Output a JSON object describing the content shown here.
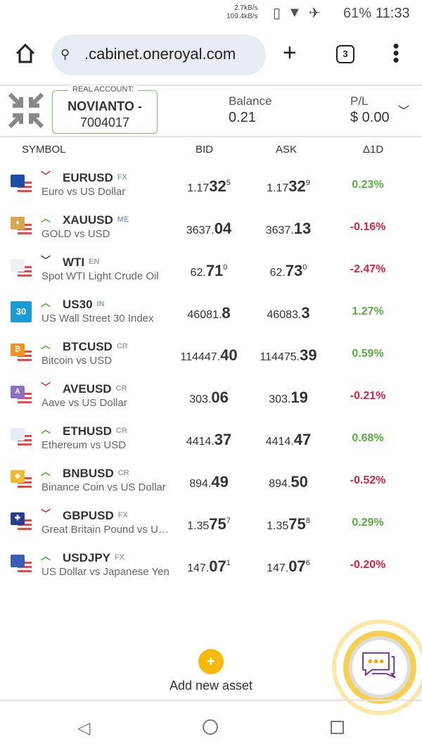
{
  "status": {
    "up": "2.7kB/s",
    "down": "109.4kB/s",
    "battery": "61%",
    "time": "11:33"
  },
  "browser": {
    "url": ".cabinet.oneroyal.com",
    "tab_count": "3"
  },
  "account": {
    "label": "REAL ACCOUNT:",
    "name": "NOVIANTO -",
    "number": "7004017",
    "balance_label": "Balance",
    "balance": "0.21",
    "pl_label": "P/L",
    "pl": "$ 0.00"
  },
  "table": {
    "headers": {
      "symbol": "SYMBOL",
      "bid": "BID",
      "ask": "ASK",
      "change": "Δ1D"
    }
  },
  "colors": {
    "up": "#5aac44",
    "down": "#d6244a",
    "accent": "#f8b90b"
  },
  "rows": [
    {
      "symbol": "EURUSD",
      "cat": "FX",
      "desc": "Euro vs US Dollar",
      "dir": "down",
      "icon": "eu-flag-icon",
      "iconColor": "#1d4ea8",
      "iconText": "",
      "bid": [
        "1.17",
        "32",
        "5"
      ],
      "ask": [
        "1.17",
        "32",
        "9"
      ],
      "change": "0.23%",
      "changeDir": "up"
    },
    {
      "symbol": "XAUUSD",
      "cat": "ME",
      "desc": "GOLD vs USD",
      "dir": "up",
      "icon": "gold-icon",
      "iconColor": "#d9a54e",
      "iconText": "♦",
      "bid": [
        "3637.",
        "04",
        ""
      ],
      "ask": [
        "3637.",
        "13",
        ""
      ],
      "change": "-0.16%",
      "changeDir": "down"
    },
    {
      "symbol": "WTI",
      "cat": "EN",
      "desc": "Spot WTI Light Crude Oil",
      "dir": "neutral",
      "icon": "oil-icon",
      "iconColor": "#eef1f4",
      "iconText": "",
      "bid": [
        "62.",
        "71",
        "0"
      ],
      "ask": [
        "62.",
        "73",
        "0"
      ],
      "change": "-2.47%",
      "changeDir": "down"
    },
    {
      "symbol": "US30",
      "cat": "IN",
      "desc": "US Wall Street 30 Index",
      "dir": "up",
      "icon": "index-30-icon",
      "iconColor": "#1a9ad6",
      "iconText": "30",
      "bid": [
        "46081.",
        "8",
        ""
      ],
      "ask": [
        "46083.",
        "3",
        ""
      ],
      "change": "1.27%",
      "changeDir": "up"
    },
    {
      "symbol": "BTCUSD",
      "cat": "CR",
      "desc": "Bitcoin vs USD",
      "dir": "up",
      "icon": "bitcoin-icon",
      "iconColor": "#f39321",
      "iconText": "₿",
      "bid": [
        "114447.",
        "40",
        ""
      ],
      "ask": [
        "114475.",
        "39",
        ""
      ],
      "change": "0.59%",
      "changeDir": "up"
    },
    {
      "symbol": "AVEUSD",
      "cat": "CR",
      "desc": "Aave vs US Dollar",
      "dir": "down",
      "icon": "aave-icon",
      "iconColor": "#8c6fc4",
      "iconText": "A",
      "bid": [
        "303.",
        "06",
        ""
      ],
      "ask": [
        "303.",
        "19",
        ""
      ],
      "change": "-0.21%",
      "changeDir": "down"
    },
    {
      "symbol": "ETHUSD",
      "cat": "CR",
      "desc": "Ethereum vs USD",
      "dir": "up",
      "icon": "ethereum-icon",
      "iconColor": "#e8ecf6",
      "iconText": "",
      "bid": [
        "4414.",
        "37",
        ""
      ],
      "ask": [
        "4414.",
        "47",
        ""
      ],
      "change": "0.68%",
      "changeDir": "up"
    },
    {
      "symbol": "BNBUSD",
      "cat": "CR",
      "desc": "Binance Coin vs US Dollar",
      "dir": "up",
      "icon": "binance-icon",
      "iconColor": "#f3ba2f",
      "iconText": "◆",
      "bid": [
        "894.",
        "49",
        ""
      ],
      "ask": [
        "894.",
        "50",
        ""
      ],
      "change": "-0.52%",
      "changeDir": "down"
    },
    {
      "symbol": "GBPUSD",
      "cat": "FX",
      "desc": "Great Britain Pound vs US Dollar",
      "dir": "down",
      "icon": "uk-flag-icon",
      "iconColor": "#2a3d8f",
      "iconText": "✚",
      "bid": [
        "1.35",
        "75",
        "7"
      ],
      "ask": [
        "1.35",
        "75",
        "8"
      ],
      "change": "0.29%",
      "changeDir": "up"
    },
    {
      "symbol": "USDJPY",
      "cat": "FX",
      "desc": "US Dollar vs Japanese Yen",
      "dir": "up",
      "icon": "us-jp-flag-icon",
      "iconColor": "#3b5bb5",
      "iconText": "",
      "bid": [
        "147.",
        "07",
        "1"
      ],
      "ask": [
        "147.",
        "07",
        "6"
      ],
      "change": "-0.20%",
      "changeDir": "down"
    }
  ],
  "add_asset": {
    "icon": "+",
    "label": "Add new asset"
  }
}
